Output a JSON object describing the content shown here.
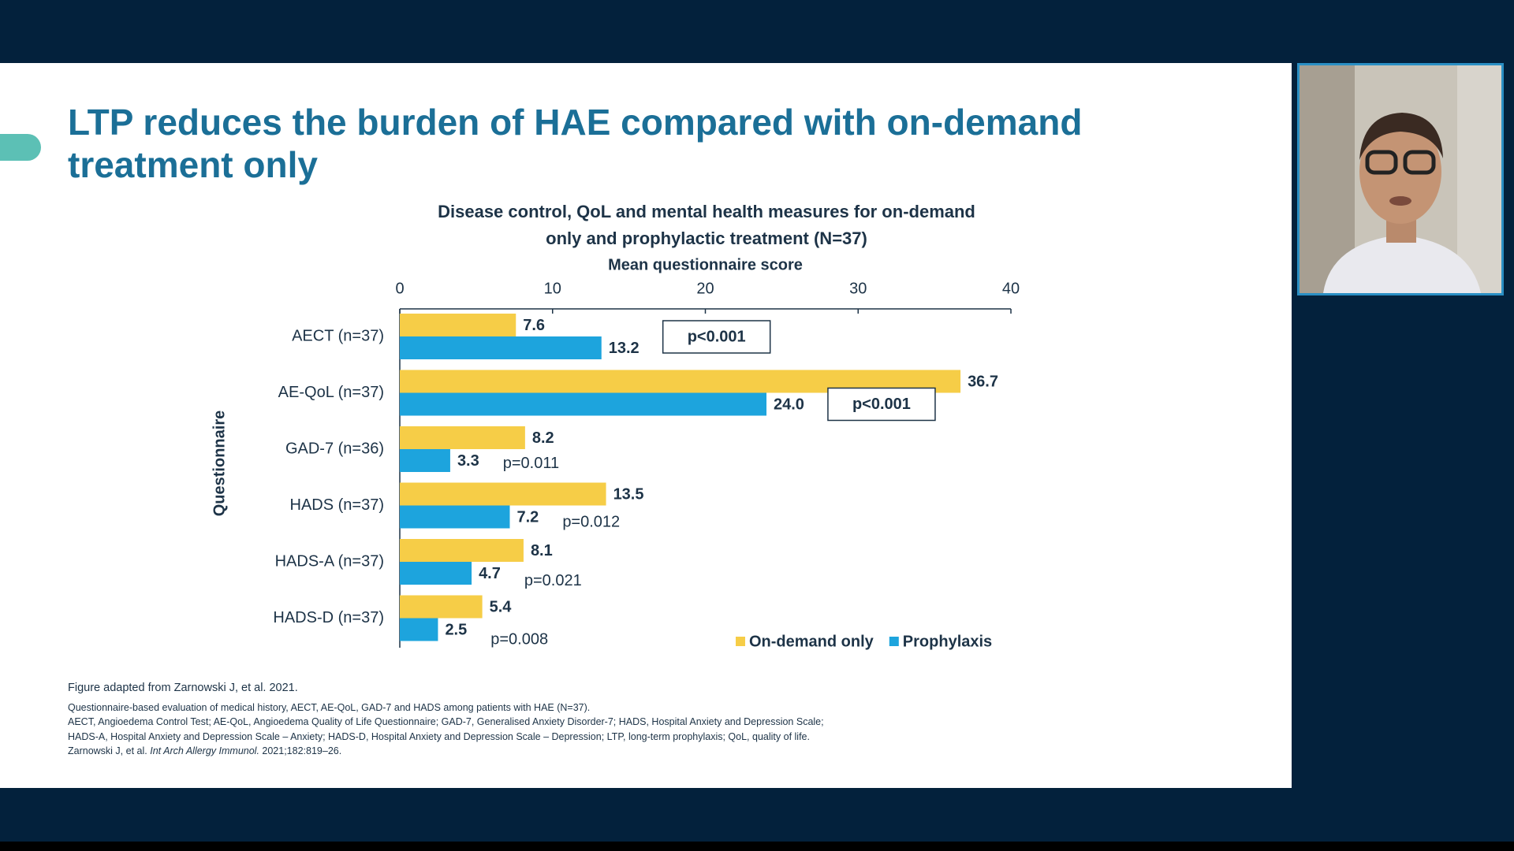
{
  "slide": {
    "title": "LTP reduces the burden of HAE compared with on-demand treatment only"
  },
  "chart_data": {
    "type": "hbar",
    "title": "Disease control, QoL and mental health measures for on-demand only and prophylactic treatment (N=37)",
    "x_label": "Mean questionnaire score",
    "y_label": "Questionnaire",
    "categories": [
      "AECT (n=37)",
      "AE-QoL (n=37)",
      "GAD-7 (n=36)",
      "HADS (n=37)",
      "HADS-A (n=37)",
      "HADS-D (n=37)"
    ],
    "series": [
      {
        "name": "On-demand only",
        "color": "#f6cd47",
        "values": [
          7.6,
          36.7,
          8.2,
          13.5,
          8.1,
          5.4
        ]
      },
      {
        "name": "Prophylaxis",
        "color": "#1da4dd",
        "values": [
          13.2,
          24.0,
          3.3,
          7.2,
          4.7,
          2.5
        ],
        "value_labels": [
          "13.2",
          "24.0",
          "3.3",
          "7.2",
          "4.7",
          "2.5"
        ]
      }
    ],
    "p_values": [
      "p<0.001",
      "p<0.001",
      "p=0.011",
      "p=0.012",
      "p=0.021",
      "p=0.008"
    ],
    "xlim": [
      0,
      40
    ],
    "xticks": [
      0,
      10,
      20,
      30,
      40
    ],
    "legend": "bottom-right"
  },
  "footnotes": {
    "source": "Figure adapted from Zarnowski J, et al. 2021.",
    "lines": [
      "Questionnaire-based evaluation of medical history, AECT, AE-QoL, GAD-7 and HADS among patients with HAE (N=37).",
      "AECT, Angioedema Control Test; AE-QoL, Angioedema Quality of Life Questionnaire; GAD-7, Generalised Anxiety Disorder-7; HADS, Hospital Anxiety and Depression Scale;",
      "HADS-A, Hospital Anxiety and Depression Scale – Anxiety; HADS-D, Hospital Anxiety and Depression Scale – Depression; LTP, long-term prophylaxis; QoL, quality of life."
    ],
    "reference": {
      "authors": "Zarnowski J, et al.",
      "journal": "Int Arch Allergy Immunol.",
      "citation": "2021;182:819–26."
    }
  }
}
